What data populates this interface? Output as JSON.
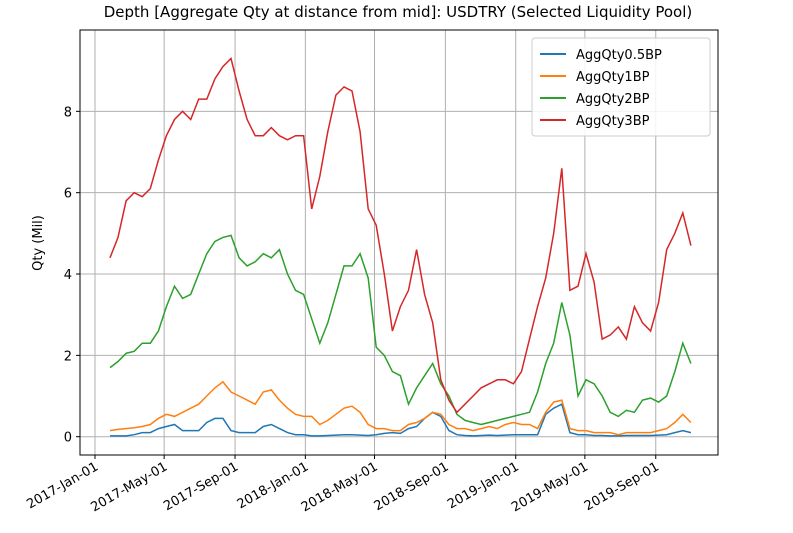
{
  "chart_data": {
    "type": "line",
    "title": "Depth [Aggregate Qty at distance from mid]: USDTRY (Selected Liquidity Pool)",
    "ylabel": "Qty (Mil)",
    "x": [
      "2017-01-27",
      "2017-02-10",
      "2017-02-24",
      "2017-03-10",
      "2017-03-24",
      "2017-04-07",
      "2017-04-21",
      "2017-05-05",
      "2017-05-19",
      "2017-06-02",
      "2017-06-16",
      "2017-06-30",
      "2017-07-14",
      "2017-07-28",
      "2017-08-11",
      "2017-08-25",
      "2017-09-08",
      "2017-09-22",
      "2017-10-06",
      "2017-10-20",
      "2017-11-03",
      "2017-11-17",
      "2017-12-01",
      "2017-12-15",
      "2017-12-29",
      "2018-01-12",
      "2018-01-26",
      "2018-02-09",
      "2018-02-23",
      "2018-03-09",
      "2018-03-23",
      "2018-04-06",
      "2018-04-20",
      "2018-05-04",
      "2018-05-18",
      "2018-06-01",
      "2018-06-15",
      "2018-06-29",
      "2018-07-13",
      "2018-07-27",
      "2018-08-10",
      "2018-08-24",
      "2018-09-07",
      "2018-09-21",
      "2018-10-05",
      "2018-10-19",
      "2018-11-02",
      "2018-11-16",
      "2018-11-30",
      "2018-12-14",
      "2018-12-28",
      "2019-01-11",
      "2019-01-25",
      "2019-02-08",
      "2019-02-22",
      "2019-03-08",
      "2019-03-22",
      "2019-04-05",
      "2019-04-19",
      "2019-05-03",
      "2019-05-17",
      "2019-05-31",
      "2019-06-14",
      "2019-06-28",
      "2019-07-12",
      "2019-07-26",
      "2019-08-09",
      "2019-08-23",
      "2019-09-06",
      "2019-09-20",
      "2019-10-04",
      "2019-10-18",
      "2019-11-01"
    ],
    "series": [
      {
        "name": "AggQty0.5BP",
        "color": "#1f77b4",
        "values": [
          0.02,
          0.02,
          0.02,
          0.05,
          0.1,
          0.1,
          0.2,
          0.25,
          0.3,
          0.15,
          0.15,
          0.15,
          0.35,
          0.45,
          0.45,
          0.15,
          0.1,
          0.1,
          0.1,
          0.25,
          0.3,
          0.2,
          0.1,
          0.05,
          0.05,
          0.02,
          0.02,
          0.03,
          0.04,
          0.05,
          0.05,
          0.04,
          0.03,
          0.05,
          0.08,
          0.1,
          0.08,
          0.2,
          0.25,
          0.45,
          0.6,
          0.5,
          0.15,
          0.05,
          0.03,
          0.02,
          0.03,
          0.04,
          0.03,
          0.04,
          0.05,
          0.05,
          0.05,
          0.05,
          0.55,
          0.7,
          0.8,
          0.1,
          0.05,
          0.05,
          0.03,
          0.03,
          0.02,
          0.02,
          0.03,
          0.03,
          0.03,
          0.03,
          0.04,
          0.05,
          0.1,
          0.15,
          0.1
        ]
      },
      {
        "name": "AggQty1BP",
        "color": "#ff7f0e",
        "values": [
          0.15,
          0.18,
          0.2,
          0.22,
          0.25,
          0.3,
          0.45,
          0.55,
          0.5,
          0.6,
          0.7,
          0.8,
          1.0,
          1.2,
          1.35,
          1.1,
          1.0,
          0.9,
          0.8,
          1.1,
          1.15,
          0.9,
          0.7,
          0.55,
          0.5,
          0.5,
          0.3,
          0.4,
          0.55,
          0.7,
          0.75,
          0.6,
          0.3,
          0.2,
          0.2,
          0.15,
          0.15,
          0.3,
          0.35,
          0.45,
          0.6,
          0.55,
          0.3,
          0.2,
          0.2,
          0.15,
          0.2,
          0.25,
          0.2,
          0.3,
          0.35,
          0.3,
          0.3,
          0.2,
          0.6,
          0.85,
          0.9,
          0.2,
          0.15,
          0.15,
          0.1,
          0.1,
          0.1,
          0.05,
          0.1,
          0.1,
          0.1,
          0.1,
          0.15,
          0.2,
          0.35,
          0.55,
          0.35
        ]
      },
      {
        "name": "AggQty2BP",
        "color": "#2ca02c",
        "values": [
          1.7,
          1.85,
          2.05,
          2.1,
          2.3,
          2.3,
          2.6,
          3.2,
          3.7,
          3.4,
          3.5,
          4.0,
          4.5,
          4.8,
          4.9,
          4.95,
          4.4,
          4.2,
          4.3,
          4.5,
          4.4,
          4.6,
          4.0,
          3.6,
          3.5,
          2.9,
          2.3,
          2.8,
          3.5,
          4.2,
          4.2,
          4.5,
          3.9,
          2.2,
          2.0,
          1.6,
          1.5,
          0.8,
          1.2,
          1.5,
          1.8,
          1.3,
          1.0,
          0.55,
          0.4,
          0.35,
          0.3,
          0.35,
          0.4,
          0.45,
          0.5,
          0.55,
          0.6,
          1.1,
          1.8,
          2.3,
          3.3,
          2.5,
          1.0,
          1.4,
          1.3,
          1.0,
          0.6,
          0.5,
          0.65,
          0.6,
          0.9,
          0.95,
          0.85,
          1.0,
          1.6,
          2.3,
          1.8
        ]
      },
      {
        "name": "AggQty3BP",
        "color": "#d62728",
        "values": [
          4.4,
          4.9,
          5.8,
          6.0,
          5.9,
          6.1,
          6.8,
          7.4,
          7.8,
          8.0,
          7.8,
          8.3,
          8.3,
          8.8,
          9.1,
          9.3,
          8.5,
          7.8,
          7.4,
          7.4,
          7.6,
          7.4,
          7.3,
          7.4,
          7.4,
          5.6,
          6.4,
          7.5,
          8.4,
          8.6,
          8.5,
          7.5,
          5.6,
          5.2,
          4.0,
          2.6,
          3.2,
          3.6,
          4.6,
          3.5,
          2.8,
          1.4,
          0.9,
          0.6,
          0.8,
          1.0,
          1.2,
          1.3,
          1.4,
          1.4,
          1.3,
          1.6,
          2.4,
          3.2,
          3.9,
          5.0,
          6.6,
          3.6,
          3.7,
          4.5,
          3.8,
          2.4,
          2.5,
          2.7,
          2.4,
          3.2,
          2.8,
          2.6,
          3.3,
          4.6,
          5.0,
          5.5,
          4.7
        ]
      }
    ],
    "xlim": [
      "2016-12-06",
      "2019-12-18"
    ],
    "xticks": [
      {
        "value": "2017-01-01",
        "label": "2017-Jan-01"
      },
      {
        "value": "2017-05-01",
        "label": "2017-May-01"
      },
      {
        "value": "2017-09-01",
        "label": "2017-Sep-01"
      },
      {
        "value": "2018-01-01",
        "label": "2018-Jan-01"
      },
      {
        "value": "2018-05-01",
        "label": "2018-May-01"
      },
      {
        "value": "2018-09-01",
        "label": "2018-Sep-01"
      },
      {
        "value": "2019-01-01",
        "label": "2019-Jan-01"
      },
      {
        "value": "2019-05-01",
        "label": "2019-May-01"
      },
      {
        "value": "2019-09-01",
        "label": "2019-Sep-01"
      }
    ],
    "ylim": [
      -0.45,
      10.0
    ],
    "yticks": [
      0,
      2,
      4,
      6,
      8
    ],
    "grid": true,
    "legend": "upper right"
  }
}
